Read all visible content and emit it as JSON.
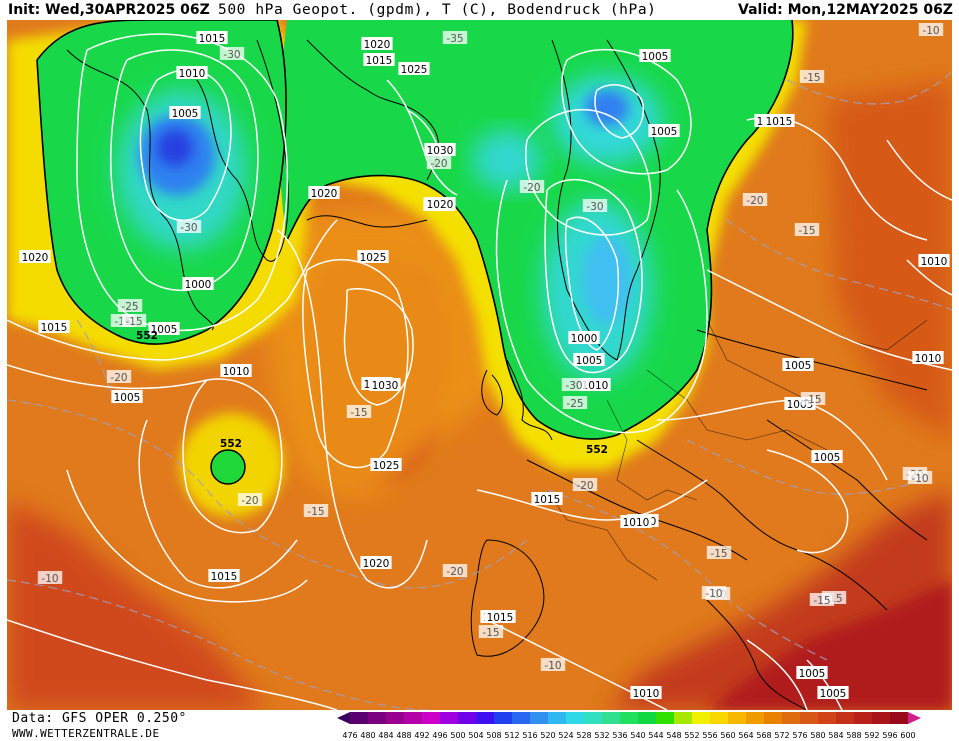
{
  "header": {
    "init": "Init: Wed,30APR2025 06Z",
    "title": "500 hPa Geopot. (gpdm), T (C), Bodendruck (hPa)",
    "valid": "Valid: Mon,12MAY2025 06Z"
  },
  "footer": {
    "data_source": "Data: GFS OPER 0.250°",
    "website": "WWW.WETTERZENTRALE.DE"
  },
  "colors": {
    "ocean_warm": "#e07a1c",
    "ridge": "#f2a012",
    "yellow_band": "#f4e000",
    "green_trough": "#18d84a",
    "cyan_core": "#30d8d0",
    "blue_core": "#2f58e6",
    "deep_red": "#b8201c",
    "isobar": "#ffffff",
    "coast": "#000000"
  },
  "legend": {
    "ticks": [
      "476",
      "480",
      "484",
      "488",
      "492",
      "496",
      "500",
      "504",
      "508",
      "512",
      "516",
      "520",
      "524",
      "528",
      "532",
      "536",
      "540",
      "544",
      "548",
      "552",
      "556",
      "560",
      "564",
      "568",
      "572",
      "576",
      "580",
      "584",
      "588",
      "592",
      "596",
      "600"
    ],
    "colors": [
      "#3a0060",
      "#5a0070",
      "#7a0080",
      "#9a0090",
      "#b400a8",
      "#cc00c8",
      "#a000e0",
      "#7000e8",
      "#3c10f0",
      "#2040f0",
      "#2868f0",
      "#3090f0",
      "#30b8f0",
      "#30d8e8",
      "#30e0c0",
      "#30e090",
      "#20e060",
      "#10d840",
      "#30e000",
      "#a8e800",
      "#f0f000",
      "#f8d800",
      "#f8b800",
      "#f09c00",
      "#e88200",
      "#e06c10",
      "#d85818",
      "#d04418",
      "#c43018",
      "#b82018",
      "#a81418",
      "#980818",
      "#d0208c"
    ]
  },
  "map_labels": {
    "isobars": [
      "1015",
      "1010",
      "1005",
      "1020",
      "1015",
      "1025",
      "1030",
      "1020",
      "1005",
      "1005",
      "1015",
      "1020",
      "1000",
      "1020",
      "1025",
      "1015",
      "1030",
      "1020",
      "1005",
      "1000",
      "1005",
      "1010",
      "1010",
      "1005",
      "1025",
      "1010",
      "1010",
      "1005",
      "1030",
      "1005",
      "1010",
      "1005",
      "1015",
      "1010",
      "1015",
      "1020",
      "1015",
      "1015",
      "1010",
      "1005",
      "1005",
      "1010"
    ],
    "temperatures": [
      "-30",
      "-35",
      "-20",
      "-30",
      "-30",
      "-20",
      "-20",
      "-15",
      "-30",
      "-25",
      "-20",
      "-15",
      "-25",
      "-20",
      "-15",
      "-15",
      "-10",
      "-15",
      "-15",
      "-20",
      "-15",
      "-20",
      "-10",
      "-10",
      "-15",
      "-15",
      "-10",
      "-10",
      "-10",
      "-15",
      "-15",
      "-20"
    ],
    "geopotential": [
      "552",
      "552",
      "552"
    ]
  }
}
